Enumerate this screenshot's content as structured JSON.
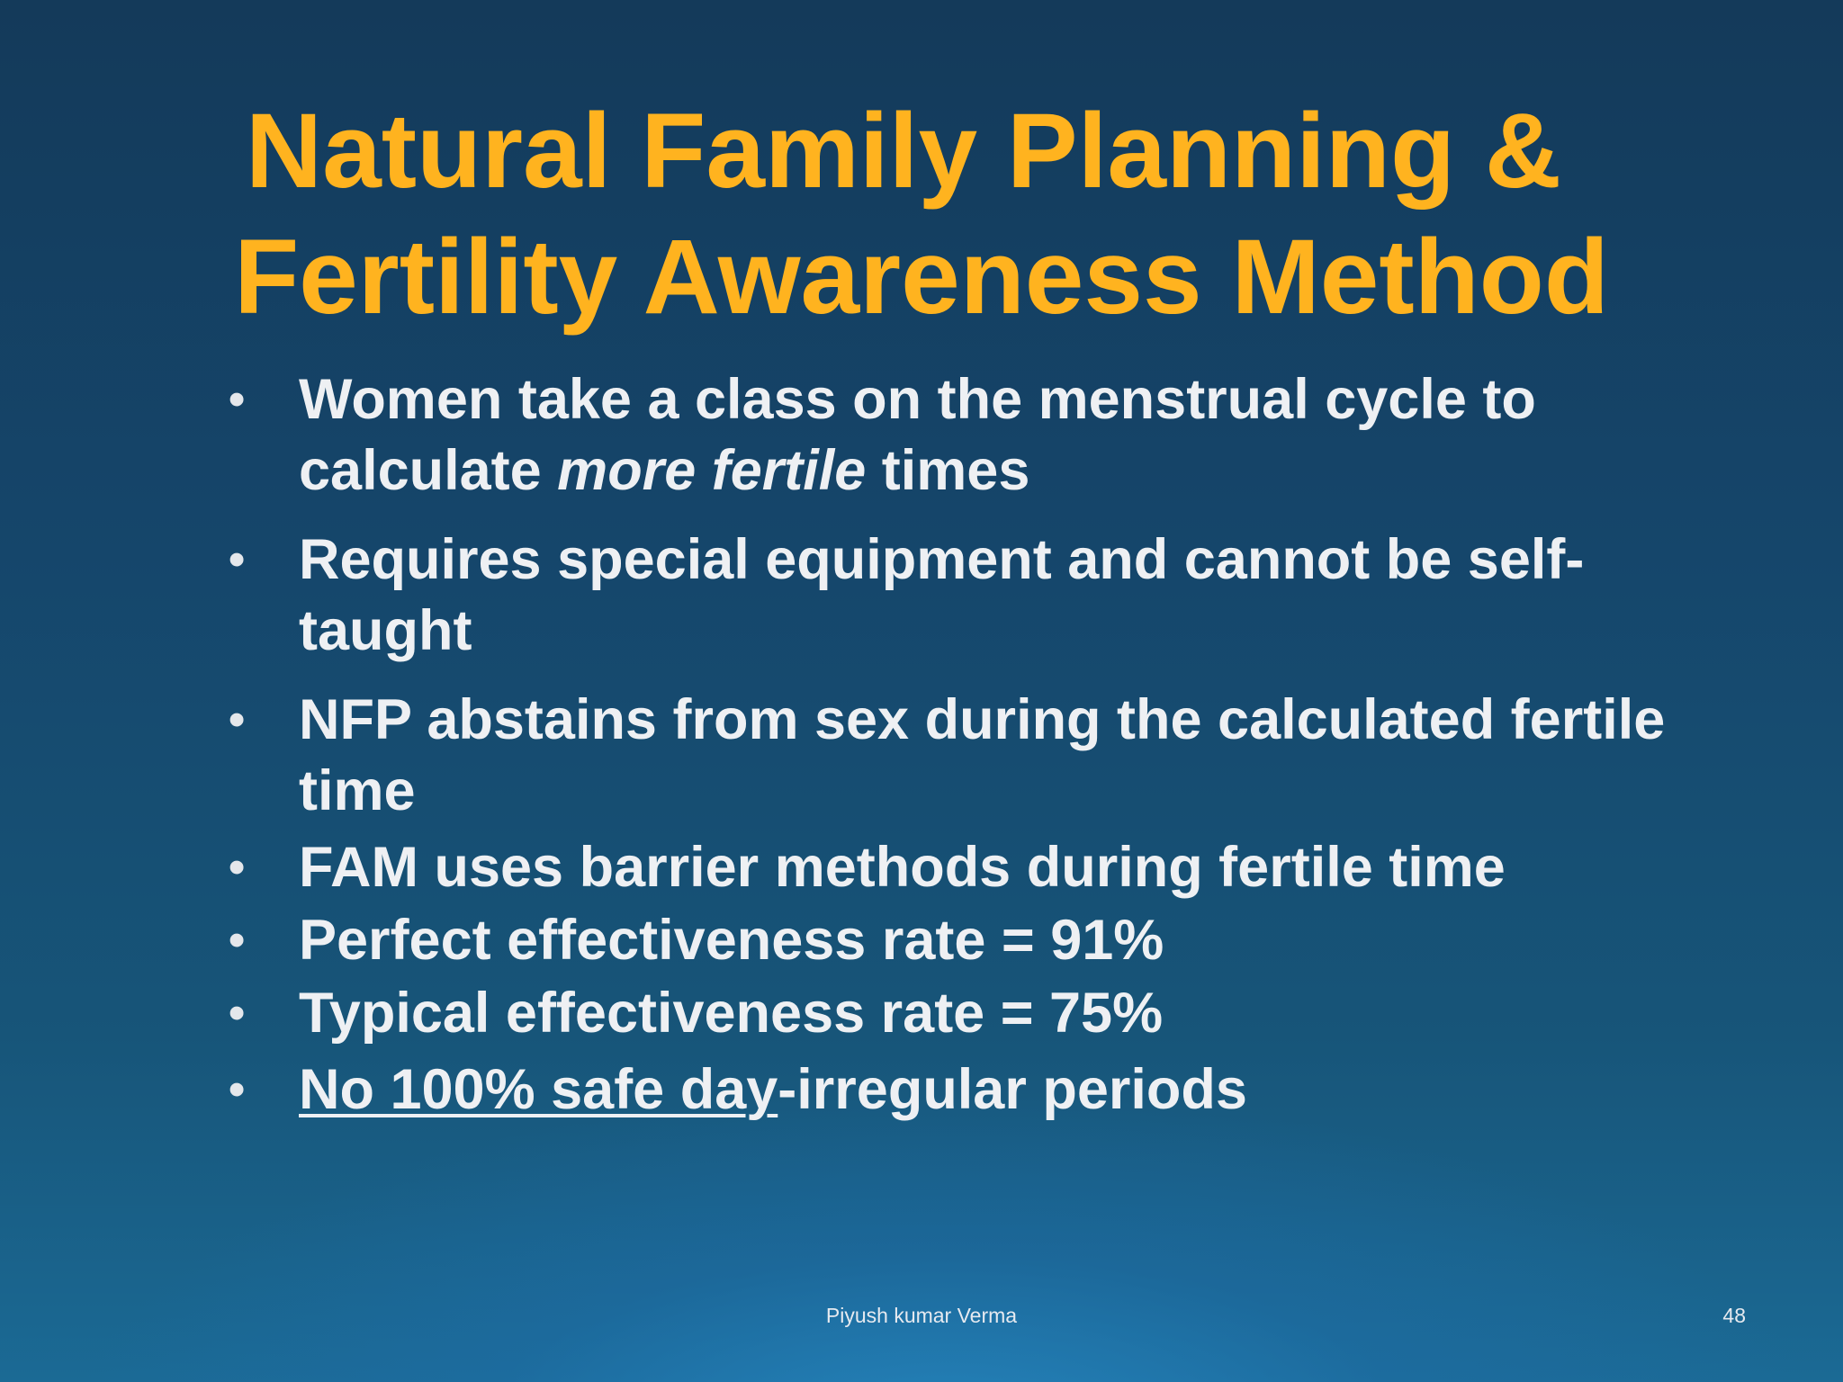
{
  "slide": {
    "title_line1": "Natural Family Planning &",
    "title_line2": "Fertility Awareness Method",
    "bullet_char": "•",
    "bullets": [
      {
        "text_before": "Women take a class on the menstrual cycle to calculate ",
        "emphasis": "more fertile",
        "text_after": " times"
      },
      {
        "text": "Requires special equipment and cannot be self-taught"
      },
      {
        "text": "NFP abstains from sex during the calculated fertile time"
      },
      {
        "text": "FAM uses barrier methods during fertile time"
      },
      {
        "text": "Perfect effectiveness rate = 91%"
      },
      {
        "text": "Typical effectiveness rate = 75%"
      },
      {
        "underlined": "No 100% safe day",
        "text_after": "-irregular periods"
      }
    ],
    "footer": "Piyush kumar Verma",
    "page_number": "48"
  },
  "colors": {
    "title": "#FFB31F",
    "body_text": "#EEF0F3",
    "background_top": "#143a5a",
    "background_bottom": "#1b6a95"
  }
}
